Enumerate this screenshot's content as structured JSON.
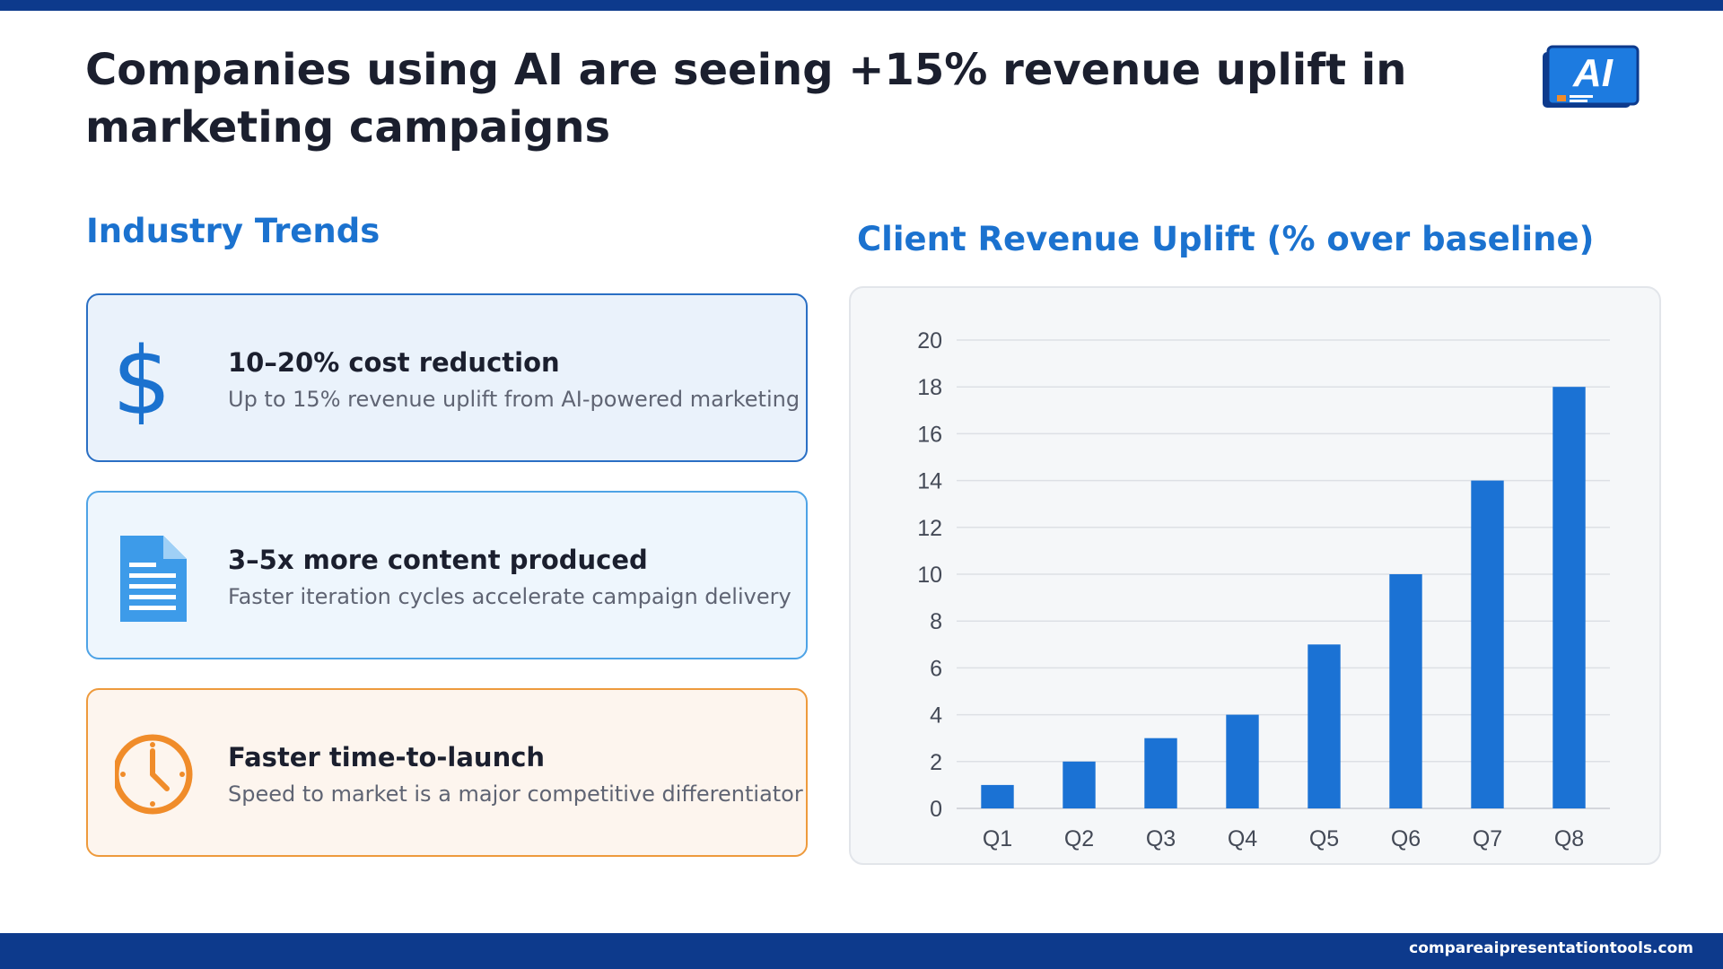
{
  "slide": {
    "title": "Companies using AI are seeing +15% revenue uplift in marketing campaigns",
    "logo_text": "AI",
    "footer_url": "compareaipresentationtools.com"
  },
  "trends": {
    "heading": "Industry Trends",
    "cards": [
      {
        "title": "10–20% cost reduction",
        "subtitle": "Up to 15% revenue uplift from AI-powered marketing",
        "icon": "dollar-icon",
        "accent": "#1b72cf"
      },
      {
        "title": "3–5x more content produced",
        "subtitle": "Faster iteration cycles accelerate campaign delivery",
        "icon": "document-icon",
        "accent": "#3d9be9"
      },
      {
        "title": "Faster time-to-launch",
        "subtitle": "Speed to market is a major competitive differentiator",
        "icon": "clock-icon",
        "accent": "#f08c2a"
      }
    ]
  },
  "chart_data": {
    "type": "bar",
    "title": "Client Revenue Uplift (% over baseline)",
    "categories": [
      "Q1",
      "Q2",
      "Q3",
      "Q4",
      "Q5",
      "Q6",
      "Q7",
      "Q8"
    ],
    "values": [
      1,
      2,
      3,
      4,
      7,
      10,
      14,
      18
    ],
    "ylim": [
      0,
      20
    ],
    "yticks": [
      0,
      2,
      4,
      6,
      8,
      10,
      12,
      14,
      16,
      18,
      20
    ],
    "grid": true,
    "bar_color": "#1b72d4",
    "xlabel": "",
    "ylabel": ""
  }
}
